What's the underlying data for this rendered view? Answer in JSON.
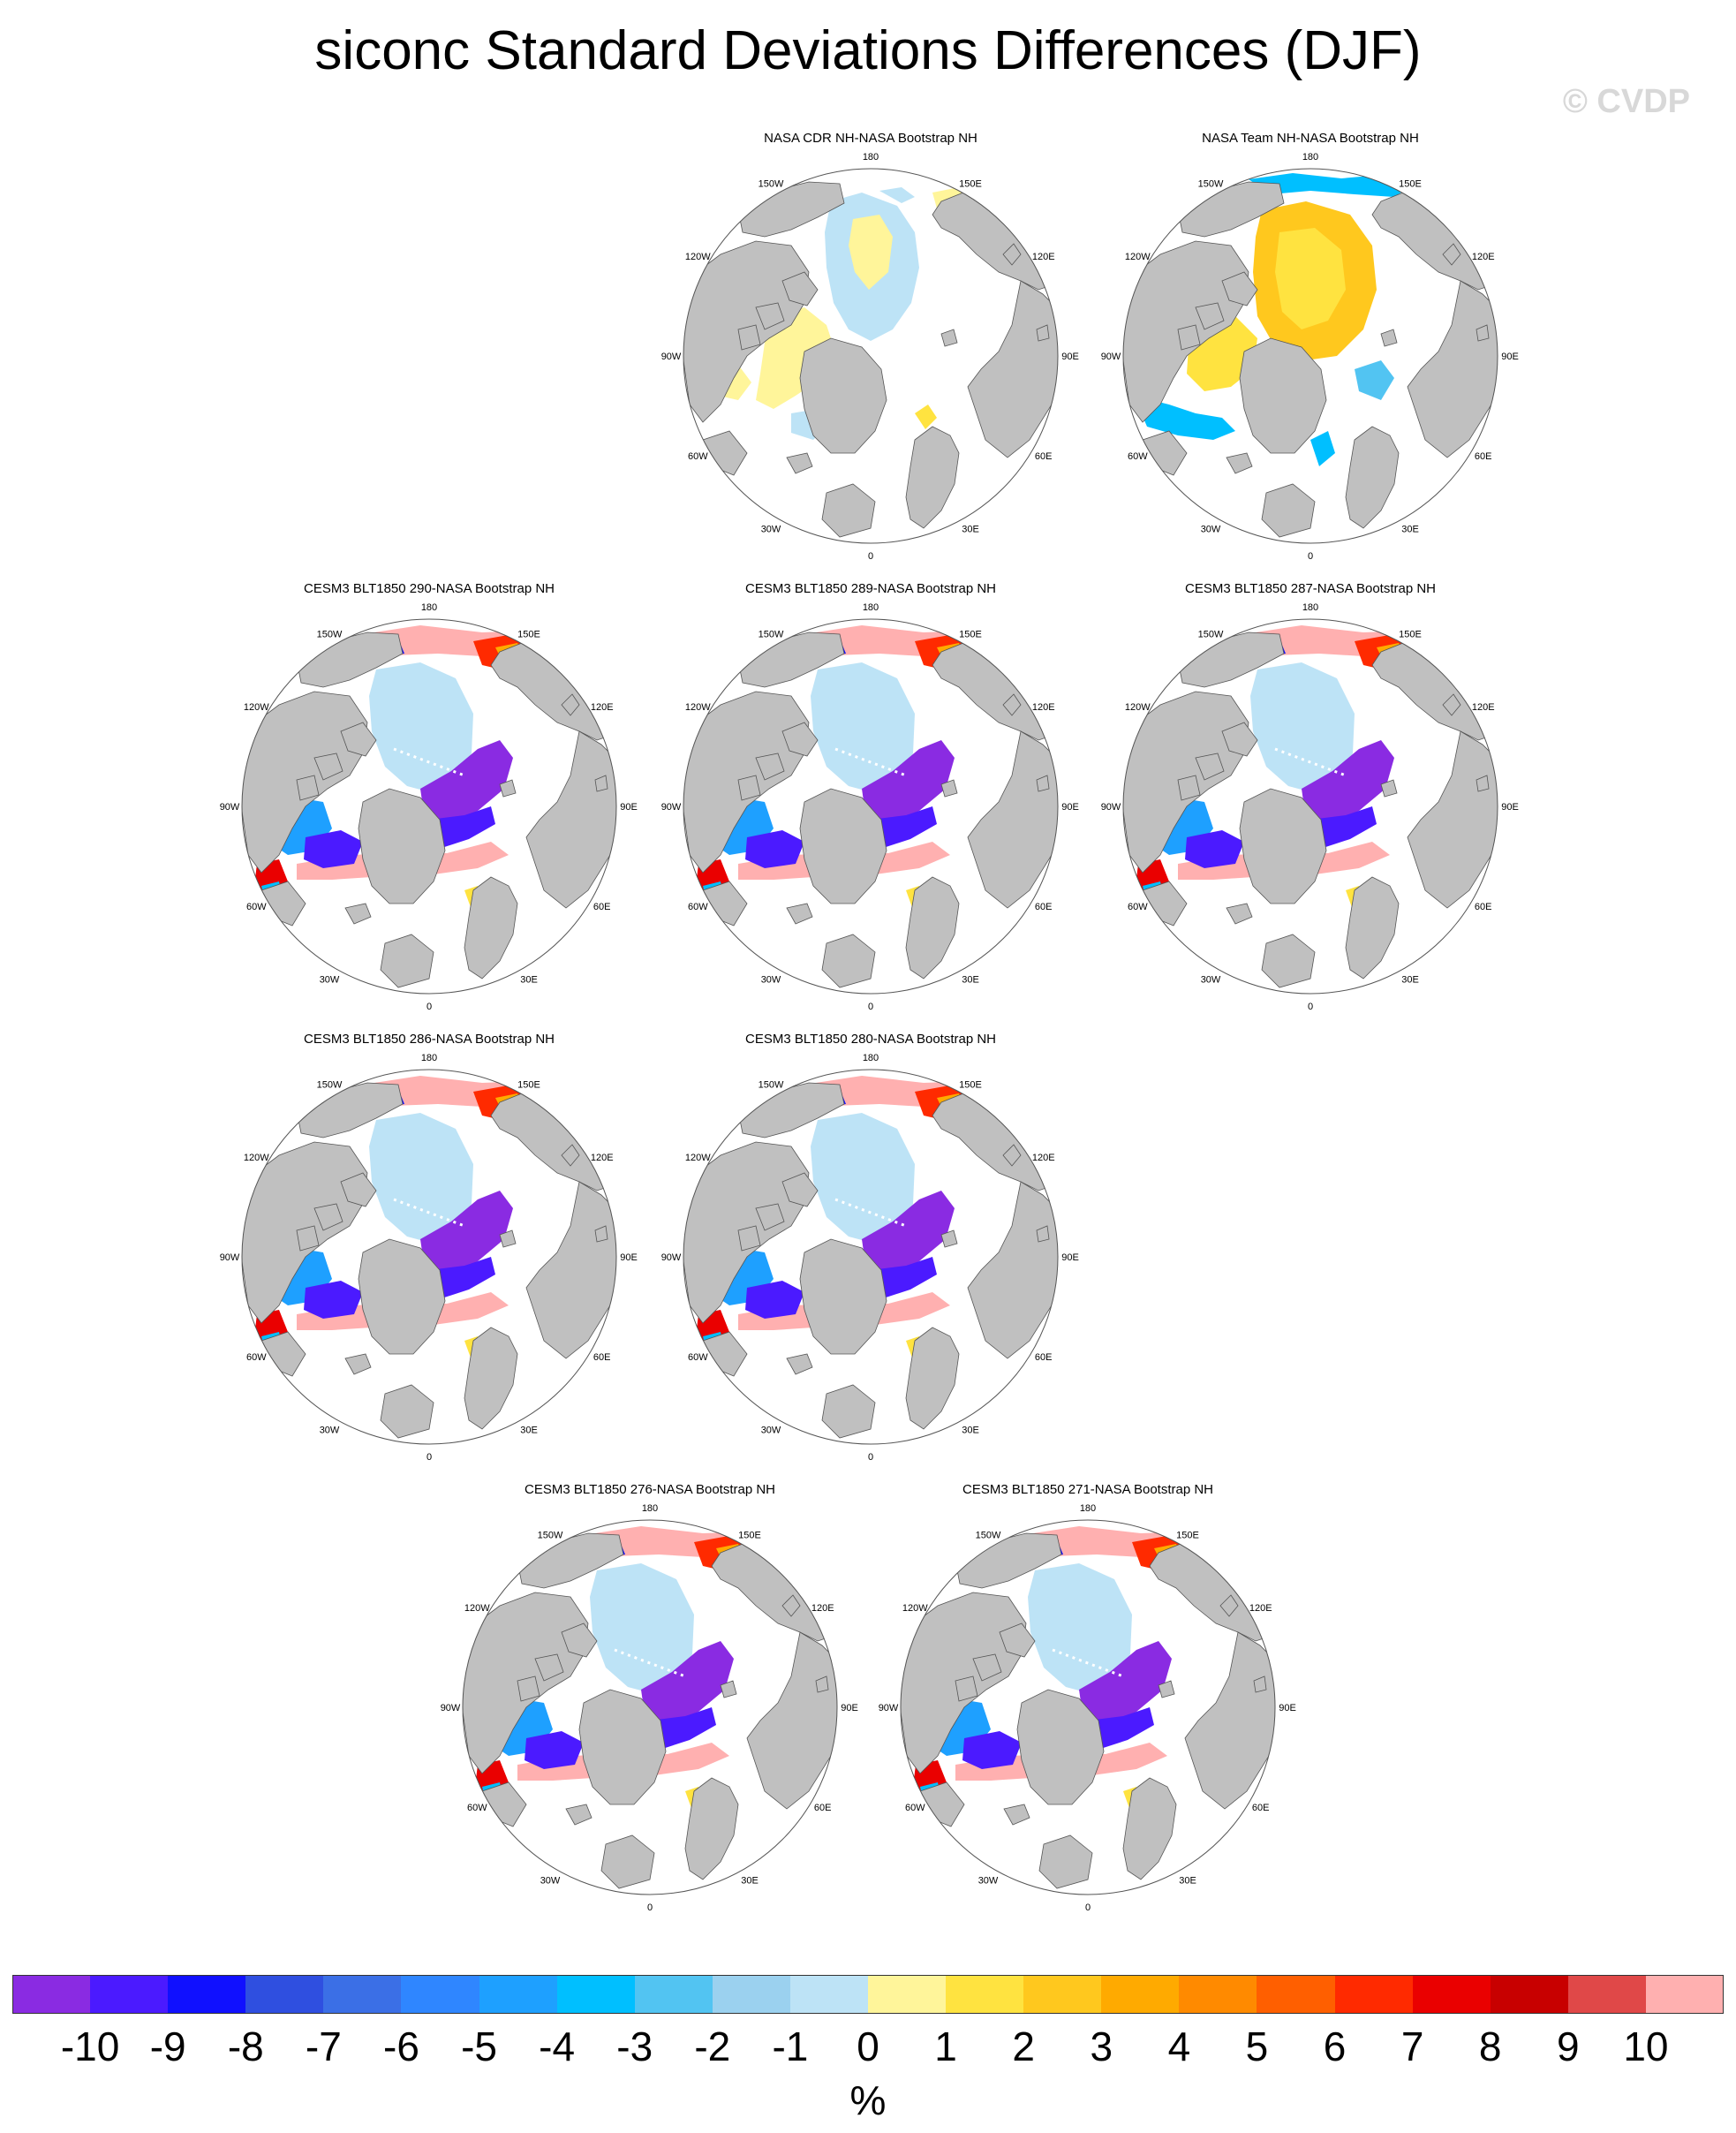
{
  "title": "siconc Standard Deviations Differences (DJF)",
  "watermark": "© CVDP",
  "map_labels": {
    "top": "180",
    "bottom": "0",
    "left": "90W",
    "right": "90E",
    "upper_left_1": "150W",
    "upper_left_2": "120W",
    "upper_right_1": "150E",
    "upper_right_2": "120E",
    "lower_left_1": "60W",
    "lower_left_2": "30W",
    "lower_right_1": "60E",
    "lower_right_2": "30E"
  },
  "panels": [
    {
      "title": "NASA CDR NH-NASA Bootstrap NH",
      "style": "obs_cdr"
    },
    {
      "title": "NASA Team NH-NASA Bootstrap NH",
      "style": "obs_team"
    },
    {
      "title": "CESM3 BLT1850 290-NASA Bootstrap NH",
      "style": "model"
    },
    {
      "title": "CESM3 BLT1850 289-NASA Bootstrap NH",
      "style": "model"
    },
    {
      "title": "CESM3 BLT1850 287-NASA Bootstrap NH",
      "style": "model"
    },
    {
      "title": "CESM3 BLT1850 286-NASA Bootstrap NH",
      "style": "model"
    },
    {
      "title": "CESM3 BLT1850 280-NASA Bootstrap NH",
      "style": "model"
    },
    {
      "title": "CESM3 BLT1850 276-NASA Bootstrap NH",
      "style": "model"
    },
    {
      "title": "CESM3 BLT1850 271-NASA Bootstrap NH",
      "style": "model"
    }
  ],
  "colorbar": {
    "units": "%",
    "tick_labels": [
      "-10",
      "-9",
      "-8",
      "-7",
      "-6",
      "-5",
      "-4",
      "-3",
      "-2",
      "-1",
      "0",
      "1",
      "2",
      "3",
      "4",
      "5",
      "6",
      "7",
      "8",
      "9",
      "10"
    ],
    "colors": [
      "#8a2be2",
      "#4b1aff",
      "#1010ff",
      "#2f4fe0",
      "#3b6fe6",
      "#2f86ff",
      "#1ea0ff",
      "#00bfff",
      "#52c4f2",
      "#9bd1ef",
      "#bde3f6",
      "#fff59a",
      "#ffe340",
      "#ffc81e",
      "#ffaa00",
      "#ff8a00",
      "#ff5f00",
      "#ff2a00",
      "#ea0000",
      "#c80000",
      "#e04848",
      "#ffb0b0"
    ]
  },
  "land_color": "#c0c0c0",
  "projection": "north polar stereographic"
}
